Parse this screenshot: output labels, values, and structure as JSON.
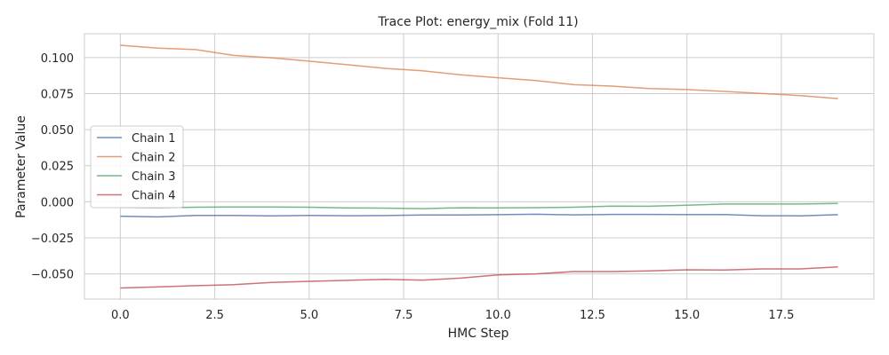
{
  "chart_data": {
    "type": "line",
    "title": "Trace Plot: energy_mix (Fold 11)",
    "xlabel": "HMC Step",
    "ylabel": "Parameter Value",
    "xlim": [
      -0.95,
      19.95
    ],
    "ylim": [
      -0.0675,
      0.1165
    ],
    "x_ticks": [
      0.0,
      2.5,
      5.0,
      7.5,
      10.0,
      12.5,
      15.0,
      17.5
    ],
    "x_tick_labels": [
      "0.0",
      "2.5",
      "5.0",
      "7.5",
      "10.0",
      "12.5",
      "15.0",
      "17.5"
    ],
    "y_ticks": [
      -0.05,
      -0.025,
      0.0,
      0.025,
      0.05,
      0.075,
      0.1
    ],
    "y_tick_labels": [
      "−0.050",
      "−0.025",
      "0.000",
      "0.025",
      "0.050",
      "0.075",
      "0.100"
    ],
    "grid": true,
    "legend_position": "center-left",
    "x": [
      0,
      1,
      2,
      3,
      4,
      5,
      6,
      7,
      8,
      9,
      10,
      11,
      12,
      13,
      14,
      15,
      16,
      17,
      18,
      19
    ],
    "series": [
      {
        "name": "Chain 1",
        "color": "#4c72b0",
        "values": [
          -0.01,
          -0.0105,
          -0.0095,
          -0.0095,
          -0.0098,
          -0.0095,
          -0.0097,
          -0.0096,
          -0.0092,
          -0.0092,
          -0.009,
          -0.0087,
          -0.0091,
          -0.0088,
          -0.0088,
          -0.0089,
          -0.0089,
          -0.0097,
          -0.0098,
          -0.009
        ]
      },
      {
        "name": "Chain 2",
        "color": "#dd8452",
        "values": [
          0.1085,
          0.1065,
          0.1055,
          0.1015,
          0.0998,
          0.0975,
          0.095,
          0.0925,
          0.0908,
          0.088,
          0.086,
          0.084,
          0.0812,
          0.0802,
          0.0785,
          0.0778,
          0.0765,
          0.075,
          0.0736,
          0.0715
        ]
      },
      {
        "name": "Chain 3",
        "color": "#55a868",
        "values": [
          -0.004,
          -0.0042,
          -0.0038,
          -0.0036,
          -0.0036,
          -0.0038,
          -0.0043,
          -0.0044,
          -0.0048,
          -0.0042,
          -0.0043,
          -0.0041,
          -0.0038,
          -0.003,
          -0.0031,
          -0.0024,
          -0.0016,
          -0.0016,
          -0.0016,
          -0.0012
        ]
      },
      {
        "name": "Chain 4",
        "color": "#c44e52",
        "values": [
          -0.0598,
          -0.059,
          -0.0582,
          -0.0575,
          -0.056,
          -0.0552,
          -0.0545,
          -0.0538,
          -0.0543,
          -0.053,
          -0.0507,
          -0.05,
          -0.0484,
          -0.0484,
          -0.048,
          -0.0472,
          -0.0473,
          -0.0466,
          -0.0466,
          -0.0452
        ]
      }
    ]
  }
}
